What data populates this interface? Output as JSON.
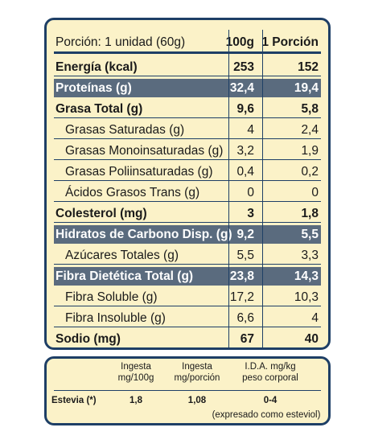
{
  "header": {
    "label": "Porción: 1 unidad (60g)",
    "col1": "100g",
    "col2": "1 Porción"
  },
  "rows": [
    {
      "label": "Energía (kcal)",
      "v1": "253",
      "v2": "152"
    },
    {
      "label": "Proteínas (g)",
      "v1": "32,4",
      "v2": "19,4"
    },
    {
      "label": "Grasa Total (g)",
      "v1": "9,6",
      "v2": "5,8"
    },
    {
      "label": "Grasas Saturadas (g)",
      "v1": "4",
      "v2": "2,4"
    },
    {
      "label": "Grasas Monoinsaturadas (g)",
      "v1": "3,2",
      "v2": "1,9"
    },
    {
      "label": "Grasas Poliinsaturadas (g)",
      "v1": "0,4",
      "v2": "0,2"
    },
    {
      "label": "Ácidos Grasos Trans (g)",
      "v1": "0",
      "v2": "0"
    },
    {
      "label": "Colesterol (mg)",
      "v1": "3",
      "v2": "1,8"
    },
    {
      "label": "Hidratos de Carbono Disp. (g)",
      "v1": "9,2",
      "v2": "5,5"
    },
    {
      "label": "Azúcares Totales (g)",
      "v1": "5,5",
      "v2": "3,3"
    },
    {
      "label": "Fibra Dietética Total (g)",
      "v1": "23,8",
      "v2": "14,3"
    },
    {
      "label": "Fibra Soluble (g)",
      "v1": "17,2",
      "v2": "10,3"
    },
    {
      "label": "Fibra Insoluble (g)",
      "v1": "6,6",
      "v2": "4"
    },
    {
      "label": "Sodio (mg)",
      "v1": "67",
      "v2": "40"
    }
  ],
  "stevia": {
    "col1": [
      "Ingesta",
      "mg/100g"
    ],
    "col2": [
      "Ingesta",
      "mg/porción"
    ],
    "col3": [
      "I.D.A. mg/kg",
      "peso corporal"
    ],
    "name": "Estevia (*)",
    "v1": "1,8",
    "v2": "1,08",
    "v3": "0-4",
    "note": "(expresado como esteviol)"
  },
  "colors": {
    "panel_bg": "#fbf2c8",
    "border": "#1e3f66",
    "highlight_row": "#5a6b7e"
  }
}
